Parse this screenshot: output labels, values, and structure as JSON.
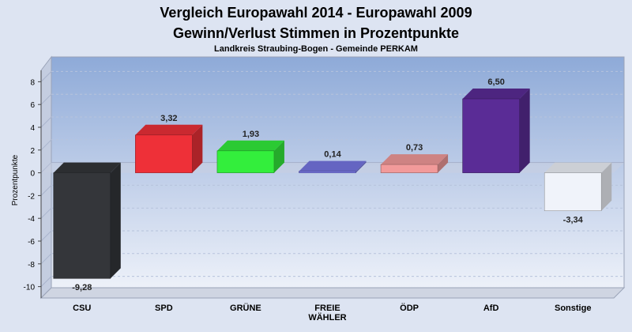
{
  "chart_data": {
    "type": "bar",
    "title": "Vergleich Europawahl 2014 - Europawahl 2009",
    "subtitle": "Gewinn/Verlust Stimmen in Prozentpunkte",
    "subsubtitle": "Landkreis Straubing-Bogen - Gemeinde PERKAM",
    "ylabel": "Prozentpunkte",
    "xlabel": "",
    "ylim": [
      -11,
      9
    ],
    "yticks": [
      8,
      6,
      4,
      2,
      0,
      -2,
      -4,
      -6,
      -8,
      -10
    ],
    "grid": true,
    "categories": [
      [
        "CSU"
      ],
      [
        "SPD"
      ],
      [
        "GRÜNE"
      ],
      [
        "FREIE",
        "WÄHLER"
      ],
      [
        "ÖDP"
      ],
      [
        "AfD"
      ],
      [
        "Sonstige"
      ]
    ],
    "values": [
      -9.28,
      3.32,
      1.93,
      0.14,
      0.73,
      6.5,
      -3.34
    ],
    "value_labels": [
      "-9,28",
      "3,32",
      "1,93",
      "0,14",
      "0,73",
      "6,50",
      "-3,34"
    ],
    "colors": [
      "#34363a",
      "#ee3038",
      "#33ee3c",
      "#7777e4",
      "#f29a9a",
      "#5a2c96",
      "#f0f3fa"
    ]
  }
}
